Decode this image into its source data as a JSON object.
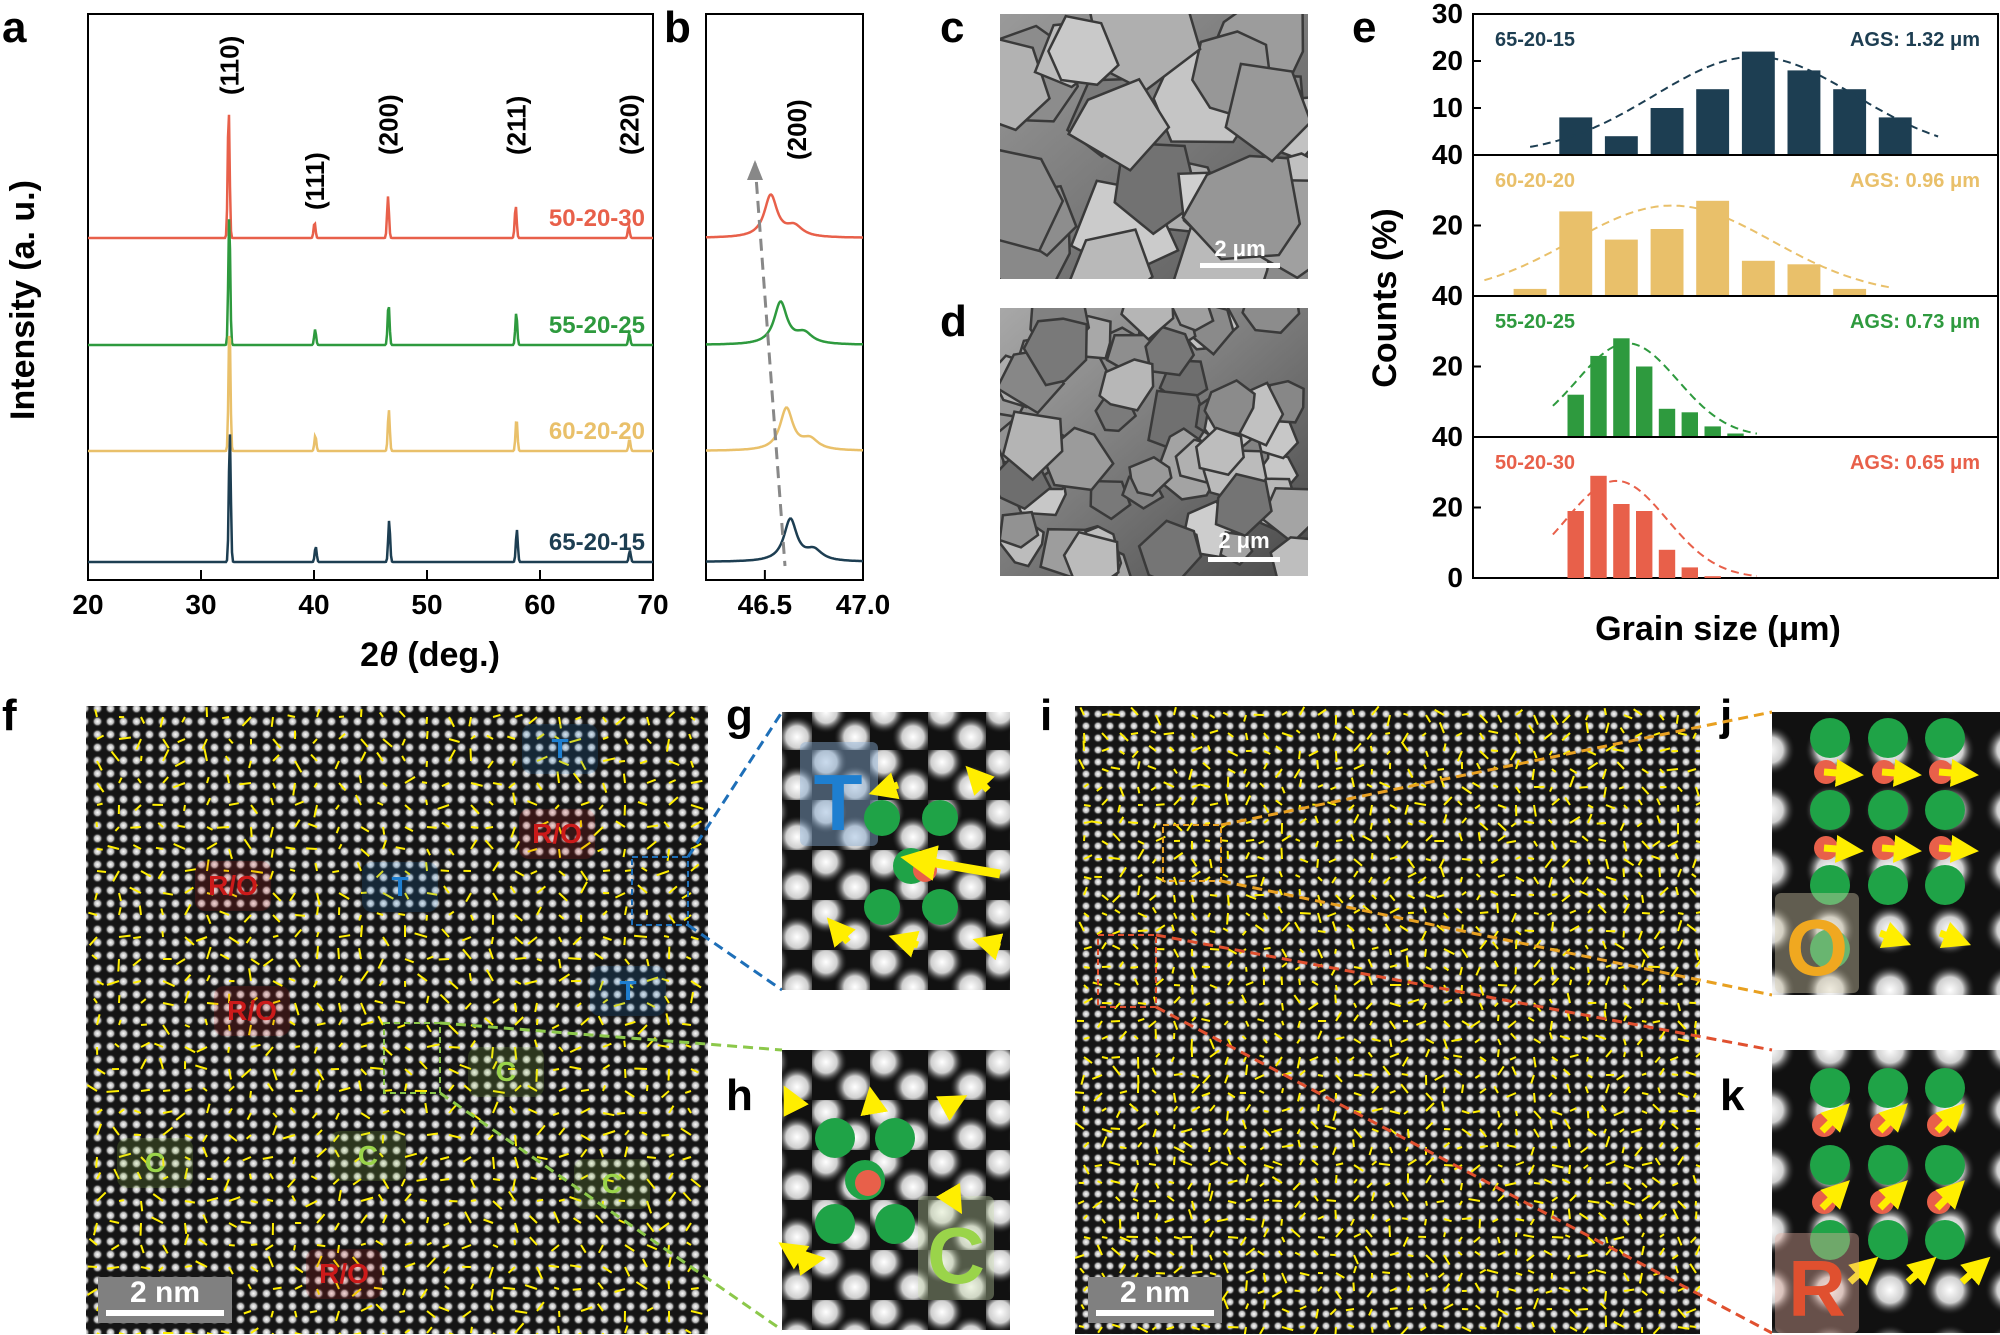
{
  "panels": {
    "a": "a",
    "b": "b",
    "c": "c",
    "d": "d",
    "e": "e",
    "f": "f",
    "g": "g",
    "h": "h",
    "i": "i",
    "j": "j",
    "k": "k"
  },
  "colors": {
    "s65": "#1d3e52",
    "s60": "#e9c06a",
    "s55": "#2e9a3e",
    "s50": "#e8604a",
    "arrow": "#ffee00",
    "green_dot": "#1fa347",
    "red_dot": "#e8604a",
    "T": "#1e7fd0",
    "R_O": "#cc1a1a",
    "C": "#9ad44a"
  },
  "chart_data": [
    {
      "id": "a",
      "type": "line",
      "xlabel_pre": "2",
      "xlabel_theta": "θ",
      "xlabel_post": " (deg.)",
      "ylabel": "Intensity (a. u.)",
      "xlim": [
        20,
        70
      ],
      "x_ticks": [
        "20",
        "30",
        "40",
        "50",
        "60",
        "70"
      ],
      "peaks": [
        {
          "x": 32.5,
          "label": "(110)",
          "rel": 1.0
        },
        {
          "x": 40.1,
          "label": "(111)",
          "rel": 0.12
        },
        {
          "x": 46.6,
          "label": "(200)",
          "rel": 0.32
        },
        {
          "x": 57.9,
          "label": "(211)",
          "rel": 0.25
        },
        {
          "x": 67.9,
          "label": "(220)",
          "rel": 0.09
        }
      ],
      "series": [
        {
          "name": "50-20-30",
          "color": "#e8604a",
          "shift": -0.05
        },
        {
          "name": "55-20-25",
          "color": "#2e9a3e",
          "shift": 0.0
        },
        {
          "name": "60-20-20",
          "color": "#e9c06a",
          "shift": 0.02
        },
        {
          "name": "65-20-15",
          "color": "#1d3e52",
          "shift": 0.05
        }
      ]
    },
    {
      "id": "b",
      "type": "line",
      "xlim": [
        46.2,
        47.0
      ],
      "x_ticks": [
        "46.5",
        "47.0"
      ],
      "peak_label": "(200)",
      "series": [
        {
          "name": "50-20-30",
          "color": "#e8604a",
          "center": 46.53
        },
        {
          "name": "55-20-25",
          "color": "#2e9a3e",
          "center": 46.58
        },
        {
          "name": "60-20-20",
          "color": "#e9c06a",
          "center": 46.61
        },
        {
          "name": "65-20-15",
          "color": "#1d3e52",
          "center": 46.63
        }
      ]
    },
    {
      "id": "e",
      "type": "bar",
      "ylabel": "Counts (%)",
      "xlabel": "Grain size (μm)",
      "subplots": [
        {
          "name": "65-20-15",
          "ags": "AGS: 1.32 μm",
          "color": "#1d3e52",
          "ymax": 30,
          "y_ticks": [
            "10",
            "20",
            "30"
          ],
          "bins": [
            0.55,
            0.75,
            0.95,
            1.15,
            1.35,
            1.55,
            1.75,
            1.95
          ],
          "values": [
            8,
            4,
            10,
            14,
            22,
            18,
            14,
            8
          ]
        },
        {
          "name": "60-20-20",
          "ags": "AGS: 0.96 μm",
          "color": "#e9c06a",
          "ymax": 40,
          "y_ticks": [
            "20",
            "40"
          ],
          "bins": [
            0.35,
            0.55,
            0.75,
            0.95,
            1.15,
            1.35,
            1.55,
            1.75
          ],
          "values": [
            2,
            24,
            16,
            19,
            27,
            10,
            9,
            2
          ]
        },
        {
          "name": "55-20-25",
          "ags": "AGS: 0.73 μm",
          "color": "#2e9a3e",
          "ymax": 40,
          "y_ticks": [
            "20",
            "40"
          ],
          "bins": [
            0.55,
            0.65,
            0.75,
            0.85,
            0.95,
            1.05,
            1.15,
            1.25
          ],
          "values": [
            12,
            23,
            28,
            20,
            8,
            7,
            3,
            1
          ]
        },
        {
          "name": "50-20-30",
          "ags": "AGS: 0.65 μm",
          "color": "#e8604a",
          "ymax": 40,
          "y_ticks": [
            "0",
            "20",
            "40"
          ],
          "bins": [
            0.55,
            0.65,
            0.75,
            0.85,
            0.95,
            1.05,
            1.15,
            1.25
          ],
          "values": [
            19,
            29,
            21,
            19,
            8,
            3,
            0.5,
            0
          ]
        }
      ]
    }
  ],
  "sem": {
    "c_scale": "2 μm",
    "d_scale": "2 μm"
  },
  "stem": {
    "f_scale": "2 nm",
    "i_scale": "2 nm",
    "f_labels": [
      {
        "text": "T",
        "kind": "T"
      },
      {
        "text": "R/O",
        "kind": "R_O"
      },
      {
        "text": "T",
        "kind": "T"
      },
      {
        "text": "R/O",
        "kind": "R_O"
      },
      {
        "text": "R/O",
        "kind": "R_O"
      },
      {
        "text": "T",
        "kind": "T"
      },
      {
        "text": "C",
        "kind": "C"
      },
      {
        "text": "C",
        "kind": "C"
      },
      {
        "text": "C",
        "kind": "C"
      },
      {
        "text": "C",
        "kind": "C"
      },
      {
        "text": "R/O",
        "kind": "R_O"
      }
    ],
    "g_label": "T",
    "h_label": "C",
    "j_label": "O",
    "k_label": "R"
  }
}
